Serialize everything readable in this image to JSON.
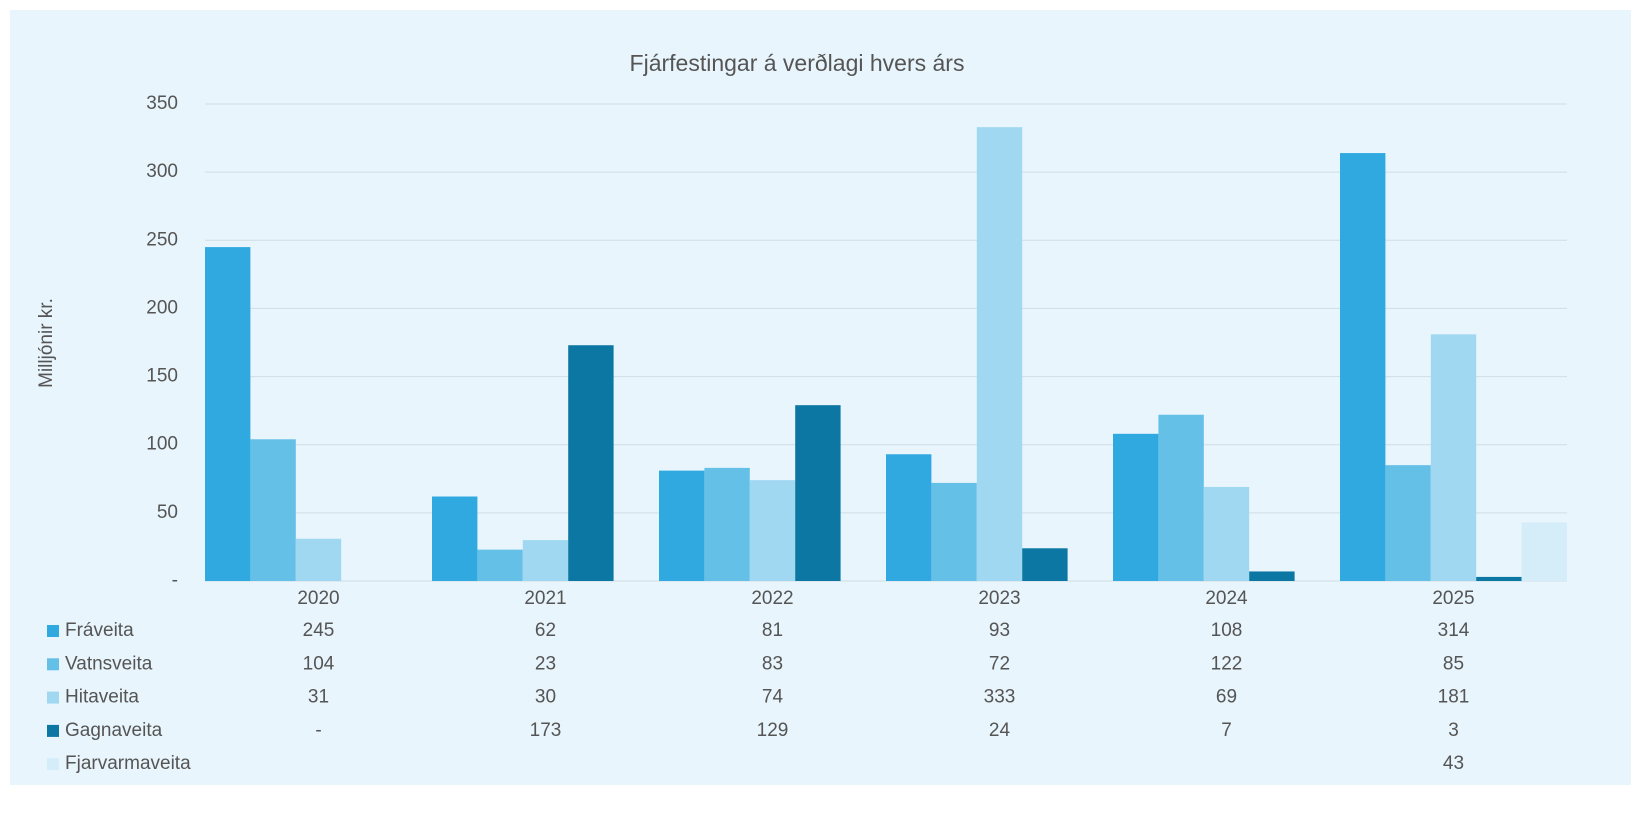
{
  "chart_data": {
    "type": "bar",
    "title": "Fjárfestingar á verðlagi hvers árs",
    "y_label": "Milljónir kr.",
    "categories": [
      "2020",
      "2021",
      "2022",
      "2023",
      "2024",
      "2025"
    ],
    "series": [
      {
        "name": "Fráveita",
        "color": "#30a9e0",
        "values": [
          245,
          62,
          81,
          93,
          108,
          314
        ]
      },
      {
        "name": "Vatnsveita",
        "color": "#65c0e8",
        "values": [
          104,
          23,
          83,
          72,
          122,
          85
        ]
      },
      {
        "name": "Hitaveita",
        "color": "#a0d8f2",
        "values": [
          31,
          30,
          74,
          333,
          69,
          181
        ]
      },
      {
        "name": "Gagnaveita",
        "color": "#0b77a2",
        "values": [
          0,
          173,
          129,
          24,
          7,
          3
        ],
        "value_labels": [
          "-",
          "173",
          "129",
          "24",
          "7",
          "3"
        ]
      },
      {
        "name": "Fjarvarmaveita",
        "color": "#d4edf9",
        "values": [
          null,
          null,
          null,
          null,
          null,
          43
        ]
      }
    ],
    "ylim": [
      0,
      350
    ],
    "yticks": [
      {
        "value": 0,
        "label": "-"
      },
      50,
      100,
      150,
      200,
      250,
      300,
      350
    ],
    "grid": true,
    "data_table": true
  }
}
